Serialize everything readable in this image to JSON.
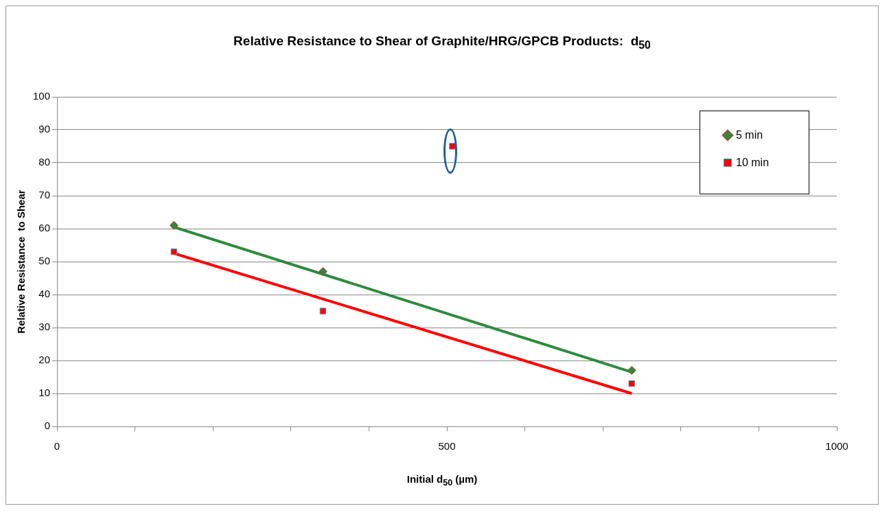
{
  "chart_data": {
    "type": "scatter",
    "title": "Relative Resistance to Shear of Graphite/HRG/GPCB Products:  d$_{50}$",
    "xlabel": "Initial d$_{50}$ (µm)",
    "ylabel": "Relative Resistance  to Shear",
    "xlim": [
      0,
      1000
    ],
    "xticks": [
      0,
      {
        "value": 100,
        "label": null
      },
      {
        "value": 200,
        "label": null
      },
      {
        "value": 300,
        "label": null
      },
      {
        "value": 400,
        "label": null
      },
      500,
      {
        "value": 600,
        "label": null
      },
      {
        "value": 700,
        "label": null
      },
      {
        "value": 800,
        "label": null
      },
      {
        "value": 900,
        "label": null
      },
      1000
    ],
    "ylim": [
      0,
      100
    ],
    "yticks": [
      0,
      10,
      20,
      30,
      40,
      50,
      60,
      70,
      80,
      90,
      100
    ],
    "grid": "y",
    "legend": "top right",
    "series": [
      {
        "name": "5 min",
        "type": "scatter",
        "marker": "diamond",
        "color": "#2e8b3e",
        "x": [
          150,
          341,
          737
        ],
        "values": [
          61,
          47,
          17
        ]
      },
      {
        "name": "10 min",
        "type": "scatter",
        "marker": "square",
        "color": "#ff0000",
        "x": [
          150,
          341,
          507,
          737
        ],
        "values": [
          53,
          35,
          85,
          13
        ]
      },
      {
        "type": "line",
        "marker": "none",
        "color": "#2e8b3e",
        "x": [
          150,
          737
        ],
        "values": [
          60.5,
          16.5
        ]
      },
      {
        "type": "line",
        "marker": "none",
        "color": "#ff0000",
        "x": [
          150,
          737
        ],
        "values": [
          52.5,
          10
        ]
      }
    ]
  }
}
